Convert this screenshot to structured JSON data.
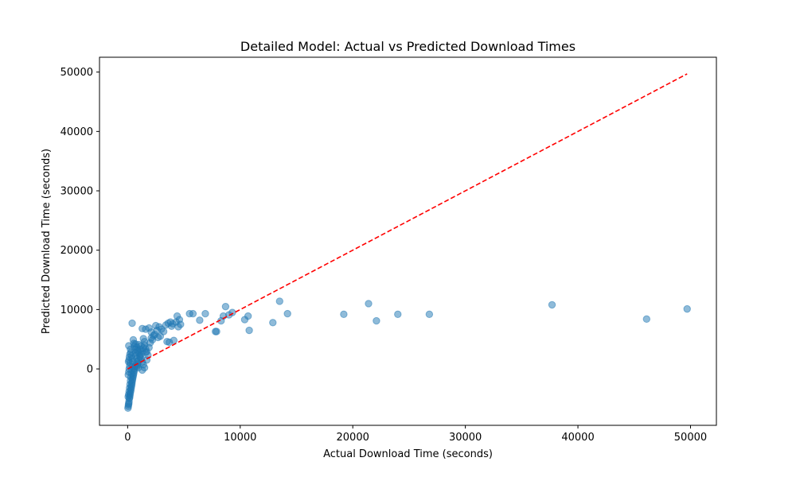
{
  "chart_data": {
    "type": "scatter",
    "title": "Detailed Model: Actual vs Predicted Download Times",
    "xlabel": "Actual Download Time (seconds)",
    "ylabel": "Predicted Download Time (seconds)",
    "xlim": [
      -2500,
      52300
    ],
    "ylim": [
      -9500,
      52500
    ],
    "xticks": [
      0,
      10000,
      20000,
      30000,
      40000,
      50000
    ],
    "yticks": [
      0,
      10000,
      20000,
      30000,
      40000,
      50000
    ],
    "grid": false,
    "legend": "none",
    "colors": {
      "points": "#1f77b4",
      "reference": "#ff0000"
    },
    "reference_line": {
      "style": "dashed",
      "x": [
        0,
        49700
      ],
      "y": [
        0,
        49700
      ]
    },
    "points": [
      [
        30,
        -6600
      ],
      [
        60,
        -6300
      ],
      [
        80,
        -6000
      ],
      [
        100,
        -5800
      ],
      [
        120,
        -5500
      ],
      [
        150,
        -5000
      ],
      [
        180,
        -4800
      ],
      [
        200,
        -4500
      ],
      [
        220,
        -4200
      ],
      [
        250,
        -3900
      ],
      [
        280,
        -3600
      ],
      [
        300,
        -3300
      ],
      [
        330,
        -3000
      ],
      [
        360,
        -2700
      ],
      [
        380,
        -2400
      ],
      [
        400,
        -2100
      ],
      [
        430,
        -1800
      ],
      [
        460,
        -1500
      ],
      [
        490,
        -1200
      ],
      [
        520,
        -900
      ],
      [
        550,
        -600
      ],
      [
        580,
        -300
      ],
      [
        600,
        0
      ],
      [
        650,
        300
      ],
      [
        700,
        600
      ],
      [
        50,
        -4700
      ],
      [
        90,
        -4300
      ],
      [
        130,
        -3800
      ],
      [
        170,
        -3200
      ],
      [
        210,
        -2600
      ],
      [
        250,
        -2000
      ],
      [
        290,
        -1400
      ],
      [
        330,
        -800
      ],
      [
        370,
        -200
      ],
      [
        410,
        400
      ],
      [
        60,
        -1000
      ],
      [
        100,
        -500
      ],
      [
        140,
        0
      ],
      [
        180,
        500
      ],
      [
        220,
        1000
      ],
      [
        80,
        1200
      ],
      [
        120,
        1500
      ],
      [
        160,
        2000
      ],
      [
        200,
        2500
      ],
      [
        100,
        3900
      ],
      [
        250,
        3300
      ],
      [
        300,
        2800
      ],
      [
        350,
        2200
      ],
      [
        400,
        1700
      ],
      [
        450,
        1200
      ],
      [
        500,
        4900
      ],
      [
        550,
        4300
      ],
      [
        600,
        3800
      ],
      [
        650,
        3300
      ],
      [
        700,
        2700
      ],
      [
        750,
        2200
      ],
      [
        800,
        1700
      ],
      [
        850,
        1200
      ],
      [
        900,
        700
      ],
      [
        950,
        200
      ],
      [
        700,
        4200
      ],
      [
        800,
        3700
      ],
      [
        900,
        3200
      ],
      [
        1000,
        2700
      ],
      [
        1100,
        2200
      ],
      [
        1200,
        1700
      ],
      [
        1300,
        1200
      ],
      [
        1400,
        700
      ],
      [
        1500,
        200
      ],
      [
        1300,
        -200
      ],
      [
        800,
        400
      ],
      [
        900,
        900
      ],
      [
        1000,
        1500
      ],
      [
        1100,
        2000
      ],
      [
        1200,
        2500
      ],
      [
        1300,
        3000
      ],
      [
        1400,
        3500
      ],
      [
        1500,
        4000
      ],
      [
        1600,
        3400
      ],
      [
        1700,
        2900
      ],
      [
        1400,
        5100
      ],
      [
        1500,
        4600
      ],
      [
        1600,
        2800
      ],
      [
        1700,
        1500
      ],
      [
        1800,
        2300
      ],
      [
        1900,
        3600
      ],
      [
        2000,
        4400
      ],
      [
        2100,
        5200
      ],
      [
        2200,
        4900
      ],
      [
        2300,
        5600
      ],
      [
        1300,
        6800
      ],
      [
        1600,
        6700
      ],
      [
        1900,
        6900
      ],
      [
        2100,
        6200
      ],
      [
        2400,
        5800
      ],
      [
        2600,
        6500
      ],
      [
        2800,
        7100
      ],
      [
        3000,
        6700
      ],
      [
        3200,
        6300
      ],
      [
        3400,
        7400
      ],
      [
        3500,
        4600
      ],
      [
        3700,
        4500
      ],
      [
        3900,
        7200
      ],
      [
        4000,
        7600
      ],
      [
        4100,
        4800
      ],
      [
        4300,
        7900
      ],
      [
        4400,
        8900
      ],
      [
        4500,
        7100
      ],
      [
        4700,
        7500
      ],
      [
        4600,
        8300
      ],
      [
        3600,
        7700
      ],
      [
        3800,
        7900
      ],
      [
        2500,
        7300
      ],
      [
        2900,
        5500
      ],
      [
        2700,
        5300
      ],
      [
        400,
        7700
      ],
      [
        1100,
        3300
      ],
      [
        1200,
        3900
      ],
      [
        1000,
        4100
      ],
      [
        900,
        2900
      ],
      [
        5500,
        9300
      ],
      [
        5800,
        9300
      ],
      [
        6400,
        8200
      ],
      [
        6900,
        9300
      ],
      [
        7800,
        6300
      ],
      [
        7900,
        6300
      ],
      [
        8300,
        8100
      ],
      [
        8500,
        8900
      ],
      [
        8700,
        10500
      ],
      [
        9000,
        9100
      ],
      [
        9300,
        9500
      ],
      [
        10400,
        8300
      ],
      [
        10700,
        8900
      ],
      [
        10800,
        6500
      ],
      [
        12900,
        7800
      ],
      [
        13500,
        11400
      ],
      [
        14200,
        9300
      ],
      [
        19200,
        9200
      ],
      [
        21400,
        11000
      ],
      [
        22100,
        8100
      ],
      [
        24000,
        9200
      ],
      [
        26800,
        9200
      ],
      [
        37700,
        10800
      ],
      [
        46100,
        8400
      ],
      [
        49700,
        10100
      ]
    ]
  }
}
